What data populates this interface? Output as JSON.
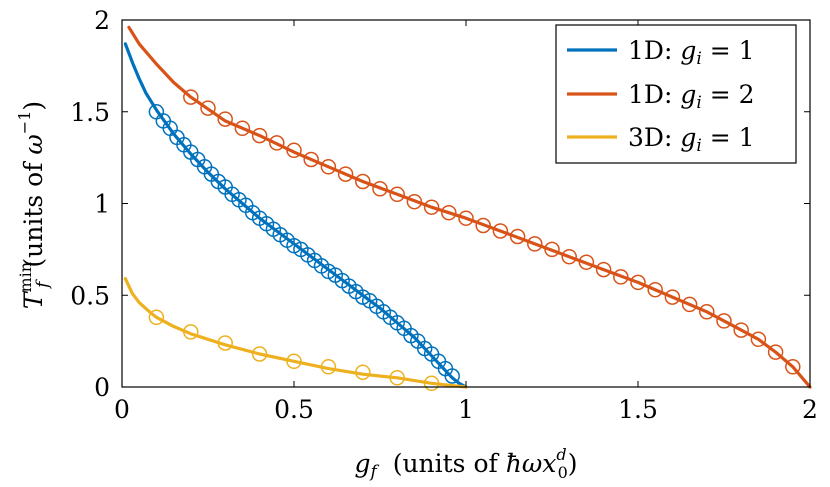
{
  "chart_data": {
    "type": "line",
    "xlabel_var": "g",
    "xlabel_sub": "f",
    "xlabel_pre": "(units of ",
    "xlabel_unit": "ħωx",
    "xlabel_unit_sub": "0",
    "xlabel_unit_sup": "d",
    "xlabel_post": ")",
    "ylabel_var": "T",
    "ylabel_sub": "f",
    "ylabel_sup": "min",
    "ylabel_pre": "(units of ",
    "ylabel_unit": "ω",
    "ylabel_unit_sup": "−1",
    "ylabel_post": ")",
    "xlim": [
      0,
      2
    ],
    "ylim": [
      0,
      2
    ],
    "xticks": [
      {
        "value": 0,
        "label": "0"
      },
      {
        "value": 0.5,
        "label": "0.5"
      },
      {
        "value": 1,
        "label": "1"
      },
      {
        "value": 1.5,
        "label": "1.5"
      },
      {
        "value": 2,
        "label": "2"
      }
    ],
    "yticks": [
      {
        "value": 0,
        "label": "0"
      },
      {
        "value": 0.5,
        "label": "0.5"
      },
      {
        "value": 1,
        "label": "1"
      },
      {
        "value": 1.5,
        "label": "1.5"
      },
      {
        "value": 2,
        "label": "2"
      }
    ],
    "grid": false,
    "legend_position": "top-right",
    "series": [
      {
        "name_dim": "1D: ",
        "name_var": "g",
        "name_sub": "i",
        "name_rel": " = 1",
        "color": "#0072bd",
        "line": {
          "x": [
            0.01,
            0.03,
            0.05,
            0.07,
            0.1,
            0.15,
            0.2,
            0.25,
            0.3,
            0.35,
            0.4,
            0.45,
            0.5,
            0.55,
            0.6,
            0.65,
            0.7,
            0.75,
            0.8,
            0.85,
            0.9,
            0.93,
            0.96,
            0.98,
            1.0
          ],
          "y": [
            1.87,
            1.77,
            1.68,
            1.6,
            1.51,
            1.38,
            1.27,
            1.17,
            1.08,
            1.0,
            0.92,
            0.85,
            0.78,
            0.71,
            0.64,
            0.57,
            0.5,
            0.43,
            0.35,
            0.27,
            0.17,
            0.11,
            0.05,
            0.02,
            0.0
          ]
        },
        "markers": {
          "x": [
            0.1,
            0.12,
            0.14,
            0.16,
            0.18,
            0.2,
            0.22,
            0.24,
            0.26,
            0.28,
            0.3,
            0.32,
            0.34,
            0.36,
            0.38,
            0.4,
            0.42,
            0.44,
            0.46,
            0.48,
            0.5,
            0.52,
            0.54,
            0.56,
            0.58,
            0.6,
            0.62,
            0.64,
            0.66,
            0.68,
            0.7,
            0.72,
            0.74,
            0.76,
            0.78,
            0.8,
            0.82,
            0.84,
            0.86,
            0.88,
            0.9,
            0.92,
            0.94,
            0.96
          ],
          "y": [
            1.5,
            1.45,
            1.41,
            1.36,
            1.32,
            1.28,
            1.24,
            1.2,
            1.16,
            1.12,
            1.09,
            1.05,
            1.02,
            0.99,
            0.95,
            0.92,
            0.89,
            0.86,
            0.83,
            0.8,
            0.77,
            0.75,
            0.72,
            0.69,
            0.66,
            0.63,
            0.61,
            0.58,
            0.55,
            0.52,
            0.49,
            0.47,
            0.44,
            0.41,
            0.38,
            0.35,
            0.32,
            0.28,
            0.25,
            0.21,
            0.18,
            0.14,
            0.1,
            0.06
          ]
        }
      },
      {
        "name_dim": "1D: ",
        "name_var": "g",
        "name_sub": "i",
        "name_rel": " = 2",
        "color": "#d95319",
        "line": {
          "x": [
            0.02,
            0.05,
            0.1,
            0.15,
            0.2,
            0.3,
            0.4,
            0.5,
            0.6,
            0.7,
            0.8,
            0.9,
            1.0,
            1.1,
            1.2,
            1.3,
            1.4,
            1.5,
            1.6,
            1.7,
            1.8,
            1.85,
            1.9,
            1.95,
            2.0
          ],
          "y": [
            1.96,
            1.87,
            1.76,
            1.66,
            1.58,
            1.45,
            1.37,
            1.28,
            1.2,
            1.12,
            1.05,
            0.98,
            0.92,
            0.85,
            0.78,
            0.71,
            0.64,
            0.57,
            0.49,
            0.41,
            0.31,
            0.26,
            0.19,
            0.11,
            0.0
          ]
        },
        "markers": {
          "x": [
            0.2,
            0.25,
            0.3,
            0.35,
            0.4,
            0.45,
            0.5,
            0.55,
            0.6,
            0.65,
            0.7,
            0.75,
            0.8,
            0.85,
            0.9,
            0.95,
            1.0,
            1.05,
            1.1,
            1.15,
            1.2,
            1.25,
            1.3,
            1.35,
            1.4,
            1.45,
            1.5,
            1.55,
            1.6,
            1.65,
            1.7,
            1.75,
            1.8,
            1.85,
            1.9,
            1.95
          ],
          "y": [
            1.58,
            1.52,
            1.46,
            1.41,
            1.37,
            1.33,
            1.29,
            1.24,
            1.2,
            1.16,
            1.12,
            1.08,
            1.05,
            1.01,
            0.98,
            0.95,
            0.92,
            0.88,
            0.85,
            0.82,
            0.78,
            0.75,
            0.71,
            0.68,
            0.64,
            0.6,
            0.57,
            0.53,
            0.49,
            0.45,
            0.41,
            0.36,
            0.31,
            0.26,
            0.19,
            0.11
          ]
        }
      },
      {
        "name_dim": "3D: ",
        "name_var": "g",
        "name_sub": "i",
        "name_rel": " = 1",
        "color": "#edb120",
        "line": {
          "x": [
            0.01,
            0.03,
            0.05,
            0.08,
            0.1,
            0.15,
            0.2,
            0.3,
            0.4,
            0.5,
            0.6,
            0.7,
            0.8,
            0.9,
            0.95,
            1.0
          ],
          "y": [
            0.59,
            0.51,
            0.46,
            0.41,
            0.38,
            0.33,
            0.29,
            0.23,
            0.18,
            0.14,
            0.1,
            0.07,
            0.05,
            0.02,
            0.01,
            0.0
          ]
        },
        "markers": {
          "x": [
            0.1,
            0.2,
            0.3,
            0.4,
            0.5,
            0.6,
            0.7,
            0.8,
            0.9
          ],
          "y": [
            0.38,
            0.3,
            0.24,
            0.18,
            0.14,
            0.11,
            0.08,
            0.05,
            0.02
          ]
        }
      }
    ]
  }
}
